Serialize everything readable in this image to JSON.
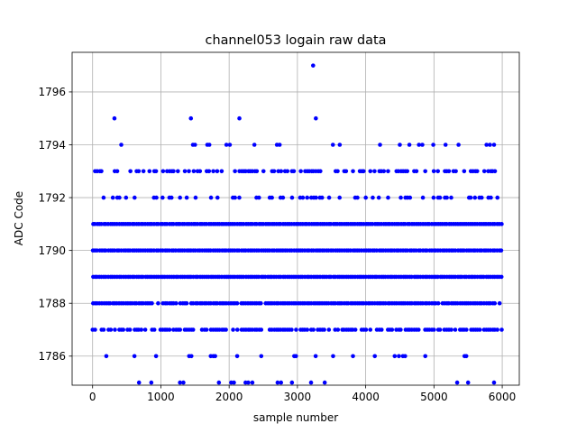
{
  "chart_data": {
    "type": "scatter",
    "title": "channel053 logain raw data",
    "xlabel": "sample number",
    "ylabel": "ADC Code",
    "xlim": [
      -300,
      6250
    ],
    "ylim": [
      1784.9,
      1797.5
    ],
    "xticks": [
      0,
      1000,
      2000,
      3000,
      4000,
      5000,
      6000
    ],
    "yticks": [
      1786,
      1788,
      1790,
      1792,
      1794,
      1796
    ],
    "grid": true,
    "marker_color": "#0000ff",
    "series": [
      {
        "description": "ADC code per sample, 6000 samples; densely populated levels listed as continuous bands, sparse levels as individual points",
        "dense_levels": [
          1787,
          1788,
          1789,
          1790,
          1791,
          1793
        ],
        "level_density": {
          "1787": 0.75,
          "1788": 0.95,
          "1789": 1.0,
          "1790": 1.0,
          "1791": 1.0,
          "1793": 0.55,
          "1792": 0.35,
          "1786": 0.18
        },
        "points": [
          [
            320,
            1795
          ],
          [
            1440,
            1795
          ],
          [
            2150,
            1795
          ],
          [
            3270,
            1795
          ],
          [
            3230,
            1797
          ],
          [
            420,
            1794
          ],
          [
            1470,
            1794
          ],
          [
            1500,
            1794
          ],
          [
            1680,
            1794
          ],
          [
            1710,
            1794
          ],
          [
            1960,
            1794
          ],
          [
            2010,
            1794
          ],
          [
            2370,
            1794
          ],
          [
            2700,
            1794
          ],
          [
            2740,
            1794
          ],
          [
            3520,
            1794
          ],
          [
            3620,
            1794
          ],
          [
            4210,
            1794
          ],
          [
            4500,
            1794
          ],
          [
            4640,
            1794
          ],
          [
            4780,
            1794
          ],
          [
            4830,
            1794
          ],
          [
            4990,
            1794
          ],
          [
            5170,
            1794
          ],
          [
            5360,
            1794
          ],
          [
            5770,
            1794
          ],
          [
            5820,
            1794
          ],
          [
            5880,
            1794
          ],
          [
            680,
            1785
          ],
          [
            860,
            1785
          ],
          [
            1280,
            1785
          ],
          [
            1330,
            1785
          ],
          [
            1850,
            1785
          ],
          [
            2030,
            1785
          ],
          [
            2070,
            1785
          ],
          [
            2240,
            1785
          ],
          [
            2280,
            1785
          ],
          [
            2340,
            1785
          ],
          [
            2710,
            1785
          ],
          [
            2760,
            1785
          ],
          [
            2920,
            1785
          ],
          [
            3200,
            1785
          ],
          [
            3400,
            1785
          ],
          [
            5340,
            1785
          ],
          [
            5500,
            1785
          ],
          [
            5880,
            1785
          ]
        ]
      }
    ]
  }
}
